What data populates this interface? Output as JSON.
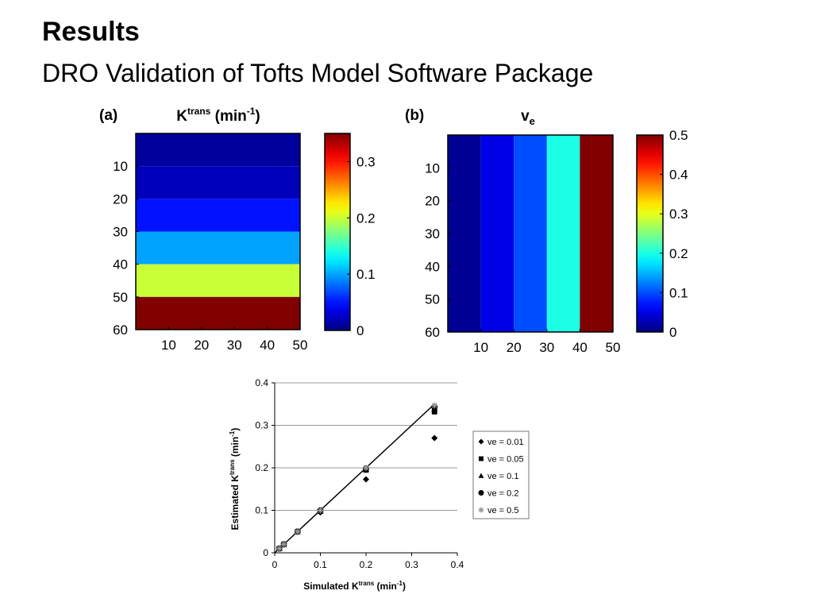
{
  "slide": {
    "title": "Results",
    "subtitle": "DRO Validation of Tofts Model Software Package"
  },
  "chart_data": [
    {
      "type": "heatmap",
      "panel_label": "(a)",
      "title_main": "K",
      "title_sup": "trans",
      "title_unit_pre": " (min",
      "title_unit_sup": "-1",
      "title_unit_post": ")",
      "x_ticks": [
        "10",
        "20",
        "30",
        "40",
        "50"
      ],
      "y_ticks": [
        "10",
        "20",
        "30",
        "40",
        "50",
        "60"
      ],
      "orientation": "horizontal-bands",
      "bands": [
        {
          "range": [
            0,
            10
          ],
          "value": 0.01
        },
        {
          "range": [
            10,
            20
          ],
          "value": 0.02
        },
        {
          "range": [
            20,
            30
          ],
          "value": 0.05
        },
        {
          "range": [
            30,
            40
          ],
          "value": 0.1
        },
        {
          "range": [
            40,
            50
          ],
          "value": 0.2
        },
        {
          "range": [
            50,
            60
          ],
          "value": 0.35
        }
      ],
      "xlim": [
        0,
        50
      ],
      "ylim": [
        0,
        60
      ],
      "colorbar": {
        "min": 0,
        "max": 0.35,
        "ticks": [
          "0",
          "0.1",
          "0.2",
          "0.3"
        ],
        "tick_values": [
          0,
          0.1,
          0.2,
          0.3
        ],
        "colormap": "jet"
      }
    },
    {
      "type": "heatmap",
      "panel_label": "(b)",
      "title_main": "v",
      "title_sub": "e",
      "x_ticks": [
        "10",
        "20",
        "30",
        "40",
        "50"
      ],
      "y_ticks": [
        "10",
        "20",
        "30",
        "40",
        "50",
        "60"
      ],
      "orientation": "vertical-bands",
      "bands": [
        {
          "range": [
            0,
            10
          ],
          "value": 0.01
        },
        {
          "range": [
            10,
            20
          ],
          "value": 0.05
        },
        {
          "range": [
            20,
            30
          ],
          "value": 0.1
        },
        {
          "range": [
            30,
            40
          ],
          "value": 0.2
        },
        {
          "range": [
            40,
            50
          ],
          "value": 0.5
        }
      ],
      "xlim": [
        0,
        50
      ],
      "ylim": [
        0,
        60
      ],
      "colorbar": {
        "min": 0,
        "max": 0.5,
        "ticks": [
          "0",
          "0.1",
          "0.2",
          "0.3",
          "0.4",
          "0.5"
        ],
        "tick_values": [
          0,
          0.1,
          0.2,
          0.3,
          0.4,
          0.5
        ],
        "colormap": "jet"
      }
    },
    {
      "type": "scatter",
      "xlabel_pre": "Simulated K",
      "xlabel_sup": "trans",
      "xlabel_post": " (min",
      "xlabel_sup2": "-1",
      "xlabel_end": ")",
      "ylabel_pre": "Estimated K",
      "ylabel_sup": "trans",
      "ylabel_post": " (min",
      "ylabel_sup2": "-1",
      "ylabel_end": ")",
      "xlim": [
        0,
        0.4
      ],
      "ylim": [
        0,
        0.4
      ],
      "x_ticks": [
        "0",
        "0.1",
        "0.2",
        "0.3",
        "0.4"
      ],
      "y_ticks": [
        "0",
        "0.1",
        "0.2",
        "0.3",
        "0.4"
      ],
      "grid": "horizontal",
      "legend_position": "right",
      "identity_line": {
        "x": [
          0,
          0.35
        ],
        "y": [
          0,
          0.35
        ]
      },
      "x": [
        0.01,
        0.02,
        0.05,
        0.1,
        0.2,
        0.35
      ],
      "series": [
        {
          "name": "ve = 0.01",
          "marker": "diamond",
          "color": "#000000",
          "values": [
            0.01,
            0.019,
            0.049,
            0.095,
            0.173,
            0.27
          ]
        },
        {
          "name": "ve = 0.05",
          "marker": "square",
          "color": "#000000",
          "values": [
            0.01,
            0.02,
            0.05,
            0.098,
            0.195,
            0.332
          ]
        },
        {
          "name": "ve = 0.1",
          "marker": "triangle",
          "color": "#000000",
          "values": [
            0.01,
            0.02,
            0.05,
            0.099,
            0.197,
            0.338
          ]
        },
        {
          "name": "ve = 0.2",
          "marker": "circle",
          "color": "#000000",
          "values": [
            0.01,
            0.02,
            0.05,
            0.1,
            0.198,
            0.343
          ]
        },
        {
          "name": "ve = 0.5",
          "marker": "asterisk",
          "color": "#9a9a9a",
          "values": [
            0.01,
            0.02,
            0.05,
            0.1,
            0.2,
            0.347
          ]
        }
      ]
    }
  ]
}
